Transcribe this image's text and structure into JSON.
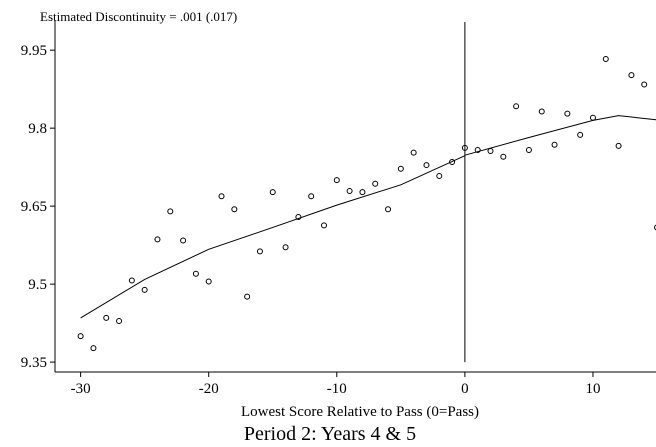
{
  "chart_data": {
    "type": "scatter",
    "title": "Estimated Discontinuity = .001 (.017)",
    "x_label": "Lowest Score Relative to Pass (0=Pass)",
    "caption": "Period 2: Years 4 & 5",
    "xlim": [
      -32,
      14.92
    ],
    "ylim": [
      9.331,
      10.008
    ],
    "xticks": [
      -30,
      -20,
      -10,
      0,
      10
    ],
    "yticks": [
      9.95,
      9.8,
      9.65,
      9.5,
      9.35
    ],
    "cutoff": 0,
    "color": "#000000",
    "points": {
      "x": [
        -30,
        -29,
        -28,
        -27,
        -26,
        -25,
        -24,
        -23,
        -22,
        -21,
        -20,
        -19,
        -18,
        -17,
        -16,
        -15,
        -14,
        -13,
        -12,
        -11,
        -10,
        -9,
        -8,
        -7,
        -6,
        -5,
        -4,
        -3,
        -2,
        -1,
        0,
        1,
        2,
        3,
        4,
        5,
        6,
        7,
        8,
        9,
        10,
        11,
        12,
        13,
        14,
        15
      ],
      "values": [
        9.4,
        9.377,
        9.435,
        9.429,
        9.507,
        9.489,
        9.586,
        9.64,
        9.584,
        9.52,
        9.505,
        9.669,
        9.644,
        9.476,
        9.563,
        9.677,
        9.571,
        9.629,
        9.669,
        9.613,
        9.7,
        9.679,
        9.677,
        9.693,
        9.644,
        9.722,
        9.753,
        9.729,
        9.708,
        9.735,
        9.762,
        9.758,
        9.756,
        9.745,
        9.842,
        9.758,
        9.832,
        9.768,
        9.828,
        9.787,
        9.82,
        9.933,
        9.766,
        9.902,
        9.884,
        9.609
      ]
    },
    "fits": [
      {
        "x": [
          -30,
          -25,
          -20,
          -15,
          -10,
          -5,
          0
        ],
        "values": [
          9.435,
          9.509,
          9.567,
          9.609,
          9.652,
          9.691,
          9.747
        ]
      },
      {
        "x": [
          0,
          5,
          10,
          12,
          15
        ],
        "values": [
          9.748,
          9.782,
          9.815,
          9.824,
          9.816
        ]
      }
    ]
  }
}
